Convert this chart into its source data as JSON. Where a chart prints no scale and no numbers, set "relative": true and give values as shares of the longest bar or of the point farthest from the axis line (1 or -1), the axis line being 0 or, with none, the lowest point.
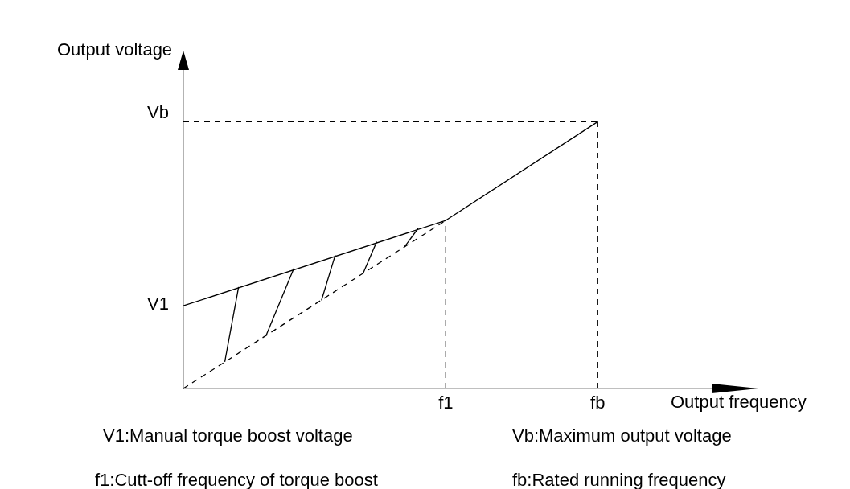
{
  "chart_data": {
    "type": "line",
    "relative": true,
    "xlabel": "Output frequency",
    "ylabel": "Output voltage",
    "categories": [
      null,
      null,
      null,
      null,
      null,
      null,
      null,
      null,
      null,
      null,
      null,
      null,
      null,
      null,
      null,
      null,
      null,
      null,
      null,
      "f1",
      null,
      null,
      null,
      null,
      null,
      null,
      null,
      null,
      null,
      null,
      "fb",
      null,
      null,
      null,
      null,
      null,
      null,
      null,
      null,
      null,
      null
    ],
    "grid": false,
    "legend": false,
    "marker": "none",
    "series": [
      {
        "color": "#000000",
        "line_style": "solid",
        "values": [
          0.31,
          null,
          null,
          null,
          null,
          null,
          null,
          null,
          null,
          null,
          null,
          null,
          null,
          null,
          null,
          null,
          null,
          null,
          null,
          0.63,
          null,
          null,
          null,
          null,
          null,
          null,
          null,
          null,
          null,
          null,
          1,
          null,
          null,
          null,
          null,
          null,
          null,
          null,
          null,
          null,
          null
        ]
      },
      {
        "color": "#000000",
        "line_style": "dashed",
        "values": [
          1,
          null,
          null,
          null,
          null,
          null,
          null,
          null,
          null,
          null,
          null,
          null,
          null,
          null,
          null,
          null,
          null,
          null,
          null,
          null,
          null,
          null,
          null,
          null,
          null,
          null,
          null,
          null,
          null,
          null,
          1,
          null,
          null,
          null,
          null,
          null,
          null,
          null,
          null,
          null,
          null
        ]
      },
      {
        "color": "#000000",
        "line_style": "dashed",
        "values": [
          0,
          null,
          null,
          null,
          null,
          null,
          null,
          null,
          null,
          null,
          null,
          null,
          null,
          null,
          null,
          null,
          null,
          null,
          null,
          0.63,
          null,
          null,
          null,
          null,
          null,
          null,
          null,
          null,
          null,
          null,
          null,
          null,
          null,
          null,
          null,
          null,
          null,
          null,
          null,
          null,
          null
        ]
      },
      {
        "color": "#000000",
        "line_style": "solid",
        "values": [
          null,
          null,
          null,
          0.1,
          0.38,
          null,
          null,
          null,
          null,
          null,
          null,
          null,
          null,
          null,
          null,
          null,
          null,
          null,
          null,
          null,
          null,
          null,
          null,
          null,
          null,
          null,
          null,
          null,
          null,
          null,
          null,
          null,
          null,
          null,
          null,
          null,
          null,
          null,
          null,
          null,
          null
        ]
      },
      {
        "color": "#000000",
        "line_style": "solid",
        "values": [
          null,
          null,
          null,
          null,
          null,
          null,
          0.2,
          null,
          0.45,
          null,
          null,
          null,
          null,
          null,
          null,
          null,
          null,
          null,
          null,
          null,
          null,
          null,
          null,
          null,
          null,
          null,
          null,
          null,
          null,
          null,
          null,
          null,
          null,
          null,
          null,
          null,
          null,
          null,
          null,
          null,
          null
        ]
      },
      {
        "color": "#000000",
        "line_style": "solid",
        "values": [
          null,
          null,
          null,
          null,
          null,
          null,
          null,
          null,
          null,
          null,
          0.33,
          0.5,
          null,
          null,
          null,
          null,
          null,
          null,
          null,
          null,
          null,
          null,
          null,
          null,
          null,
          null,
          null,
          null,
          null,
          null,
          null,
          null,
          null,
          null,
          null,
          null,
          null,
          null,
          null,
          null,
          null
        ]
      },
      {
        "color": "#000000",
        "line_style": "solid",
        "values": [
          null,
          null,
          null,
          null,
          null,
          null,
          null,
          null,
          null,
          null,
          null,
          null,
          null,
          0.43,
          0.55,
          null,
          null,
          null,
          null,
          null,
          null,
          null,
          null,
          null,
          null,
          null,
          null,
          null,
          null,
          null,
          null,
          null,
          null,
          null,
          null,
          null,
          null,
          null,
          null,
          null,
          null
        ]
      },
      {
        "color": "#000000",
        "line_style": "solid",
        "values": [
          null,
          null,
          null,
          null,
          null,
          null,
          null,
          null,
          null,
          null,
          null,
          null,
          null,
          null,
          null,
          null,
          0.53,
          0.6,
          null,
          null,
          null,
          null,
          null,
          null,
          null,
          null,
          null,
          null,
          null,
          null,
          null,
          null,
          null,
          null,
          null,
          null,
          null,
          null,
          null,
          null,
          null
        ]
      }
    ],
    "ref_lines": [
      {
        "axis": "x",
        "value": "f1",
        "line_style": "dashed",
        "color": "#000000"
      },
      {
        "axis": "x",
        "value": "fb",
        "line_style": "dashed",
        "color": "#000000"
      }
    ],
    "annotations": [
      "V1",
      "Vb",
      "V1:Manual torque boost voltage",
      "Vb:Maximum output voltage",
      "f1:Cutt-off frequency of torque boost",
      "fb:Rated running frequency"
    ]
  }
}
